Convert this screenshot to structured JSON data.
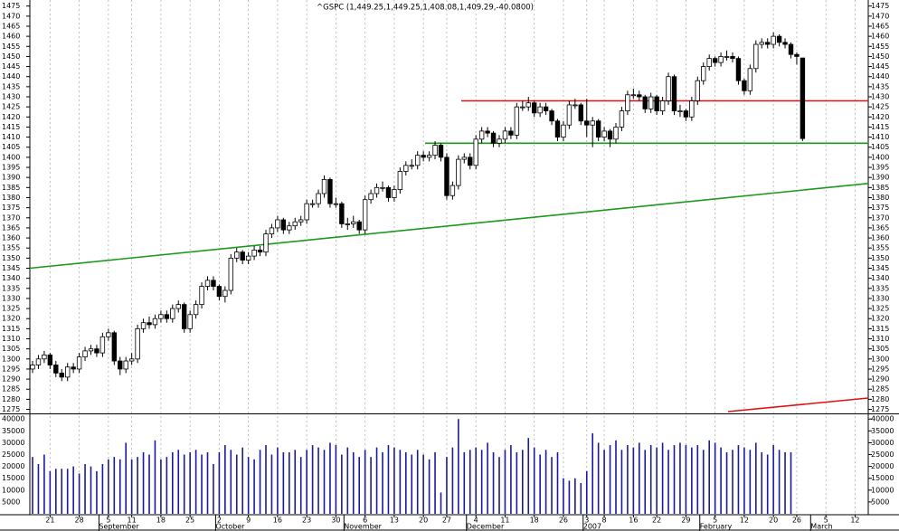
{
  "chart_data": {
    "type": "candlestick",
    "title": "^GSPC (1,449.25,1,449.25,1,408.08,1,409.29,-40.0800)",
    "categories": [
      null,
      null,
      null,
      "21",
      null,
      null,
      null,
      null,
      "28",
      null,
      null,
      null,
      null,
      "5",
      null,
      null,
      null,
      "11",
      null,
      null,
      null,
      null,
      "18",
      null,
      null,
      null,
      null,
      "25",
      null,
      null,
      null,
      null,
      "2",
      null,
      null,
      null,
      null,
      "9",
      null,
      null,
      null,
      null,
      "16",
      null,
      null,
      null,
      null,
      "23",
      null,
      null,
      null,
      null,
      "30",
      null,
      null,
      null,
      null,
      "6",
      null,
      null,
      null,
      null,
      "13",
      null,
      null,
      null,
      null,
      "20",
      null,
      null,
      null,
      "27",
      null,
      null,
      null,
      null,
      "4",
      null,
      null,
      null,
      null,
      "11",
      null,
      null,
      null,
      null,
      "18",
      null,
      null,
      null,
      null,
      "26",
      null,
      null,
      null,
      "3",
      null,
      null,
      "8",
      null,
      null,
      null,
      null,
      "16",
      null,
      null,
      null,
      "22",
      null,
      null,
      null,
      null,
      "29",
      null,
      null,
      null,
      null,
      "5",
      null,
      null,
      null,
      null,
      "12",
      null,
      null,
      null,
      null,
      "20",
      null,
      null,
      null,
      "26",
      null,
      null,
      null,
      null,
      "5",
      null,
      null,
      null,
      null,
      "12",
      null
    ],
    "months": [
      null,
      null,
      null,
      null,
      null,
      null,
      null,
      null,
      null,
      null,
      null,
      null,
      "September",
      null,
      null,
      null,
      null,
      null,
      null,
      null,
      null,
      null,
      null,
      null,
      null,
      null,
      null,
      null,
      null,
      null,
      null,
      null,
      "October",
      null,
      null,
      null,
      null,
      null,
      null,
      null,
      null,
      null,
      null,
      null,
      null,
      null,
      null,
      null,
      null,
      null,
      null,
      null,
      null,
      null,
      "November",
      null,
      null,
      null,
      null,
      null,
      null,
      null,
      null,
      null,
      null,
      null,
      null,
      null,
      null,
      null,
      null,
      null,
      null,
      null,
      null,
      "December",
      null,
      null,
      null,
      null,
      null,
      null,
      null,
      null,
      null,
      null,
      null,
      null,
      null,
      null,
      null,
      null,
      null,
      null,
      null,
      "2007",
      null,
      null,
      null,
      null,
      null,
      null,
      null,
      null,
      null,
      null,
      null,
      null,
      null,
      null,
      null,
      null,
      null,
      null,
      null,
      "February",
      null,
      null,
      null,
      null,
      null,
      null,
      null,
      null,
      null,
      null,
      null,
      null,
      null,
      null,
      null,
      null,
      null,
      null,
      "March",
      null,
      null,
      null,
      null,
      null,
      null,
      null,
      null
    ],
    "open": [
      1295,
      1297,
      1300,
      1302,
      1297,
      1293,
      1291,
      1296,
      1295,
      1301,
      1304,
      1305,
      1303,
      1311,
      1313,
      1299,
      1295,
      1299,
      1300,
      1315,
      1318,
      1317,
      1320,
      1322,
      1320,
      1325,
      1327,
      1315,
      1322,
      1327,
      1336,
      1339,
      1336,
      1331,
      1334,
      1350,
      1353,
      1349,
      1351,
      1354,
      1353,
      1362,
      1365,
      1369,
      1364,
      1366,
      1368,
      1369,
      1377,
      1377,
      1382,
      1389,
      1377,
      1377,
      1367,
      1367,
      1368,
      1364,
      1379,
      1382,
      1385,
      1385,
      1380,
      1384,
      1393,
      1396,
      1396,
      1401,
      1400,
      1401,
      1406,
      1400,
      1381,
      1386,
      1399,
      1400,
      1396,
      1409,
      1413,
      1412,
      1407,
      1409,
      1413,
      1411,
      1425,
      1425,
      1427,
      1422,
      1425,
      1423,
      1418,
      1410,
      1416,
      1426,
      1426,
      1418,
      1416,
      1418,
      1410,
      1413,
      1409,
      1415,
      1423,
      1431,
      1431,
      1430,
      1424,
      1430,
      1423,
      1428,
      1440,
      1423,
      1423,
      1420,
      1428,
      1438,
      1445,
      1449,
      1447,
      1450,
      1450,
      1449,
      1438,
      1433,
      1444,
      1456,
      1457,
      1456,
      1460,
      1457,
      1456,
      1451,
      1449.25,
      null,
      null,
      null,
      null,
      null,
      null,
      null,
      null,
      null,
      null
    ],
    "high": [
      1299,
      1302,
      1304,
      1303,
      1299,
      1295,
      1298,
      1298,
      1303,
      1306,
      1307,
      1307,
      1313,
      1315,
      1314,
      1301,
      1301,
      1303,
      1317,
      1320,
      1321,
      1322,
      1324,
      1324,
      1327,
      1329,
      1328,
      1324,
      1329,
      1338,
      1341,
      1341,
      1337,
      1336,
      1352,
      1355,
      1354,
      1353,
      1356,
      1356,
      1364,
      1367,
      1371,
      1370,
      1368,
      1370,
      1371,
      1379,
      1379,
      1384,
      1391,
      1390,
      1380,
      1378,
      1370,
      1371,
      1369,
      1381,
      1384,
      1387,
      1388,
      1386,
      1386,
      1395,
      1398,
      1399,
      1403,
      1403,
      1403,
      1408,
      1407,
      1402,
      1388,
      1401,
      1402,
      1402,
      1411,
      1415,
      1415,
      1413,
      1411,
      1415,
      1415,
      1427,
      1428,
      1430,
      1428,
      1427,
      1427,
      1424,
      1419,
      1418,
      1428,
      1429,
      1427,
      1429,
      1420,
      1419,
      1415,
      1414,
      1417,
      1425,
      1433,
      1434,
      1433,
      1431,
      1432,
      1431,
      1430,
      1442,
      1441,
      1426,
      1424,
      1430,
      1440,
      1447,
      1451,
      1450,
      1452,
      1453,
      1452,
      1450,
      1439,
      1446,
      1458,
      1459,
      1459,
      1462,
      1461,
      1459,
      1457,
      1452,
      1449.25,
      null,
      null,
      null,
      null,
      null,
      null,
      null,
      null,
      null,
      null
    ],
    "low": [
      1293,
      1295,
      1298,
      1295,
      1291,
      1289,
      1289,
      1293,
      1293,
      1299,
      1302,
      1301,
      1301,
      1309,
      1297,
      1292,
      1293,
      1297,
      1298,
      1313,
      1315,
      1315,
      1318,
      1318,
      1318,
      1323,
      1313,
      1313,
      1320,
      1325,
      1334,
      1334,
      1329,
      1328,
      1332,
      1348,
      1347,
      1347,
      1349,
      1351,
      1351,
      1360,
      1363,
      1362,
      1362,
      1364,
      1366,
      1367,
      1375,
      1375,
      1380,
      1375,
      1375,
      1365,
      1364,
      1365,
      1362,
      1362,
      1377,
      1380,
      1383,
      1378,
      1378,
      1382,
      1391,
      1394,
      1394,
      1398,
      1398,
      1399,
      1398,
      1379,
      1379,
      1384,
      1397,
      1394,
      1394,
      1407,
      1410,
      1405,
      1405,
      1407,
      1409,
      1409,
      1423,
      1423,
      1420,
      1420,
      1421,
      1416,
      1408,
      1408,
      1414,
      1424,
      1416,
      1410,
      1405,
      1408,
      1408,
      1405,
      1407,
      1413,
      1421,
      1429,
      1428,
      1422,
      1422,
      1421,
      1421,
      1426,
      1421,
      1420,
      1418,
      1418,
      1426,
      1436,
      1443,
      1445,
      1445,
      1448,
      1447,
      1436,
      1431,
      1431,
      1442,
      1454,
      1454,
      1454,
      1455,
      1454,
      1449,
      1446,
      1408.08,
      null,
      null,
      null,
      null,
      null,
      null,
      null,
      null,
      null,
      null
    ],
    "close": [
      1297,
      1300,
      1302,
      1297,
      1293,
      1291,
      1296,
      1295,
      1301,
      1304,
      1305,
      1303,
      1311,
      1313,
      1299,
      1295,
      1299,
      1300,
      1315,
      1318,
      1317,
      1320,
      1322,
      1320,
      1325,
      1327,
      1315,
      1322,
      1327,
      1336,
      1339,
      1336,
      1331,
      1334,
      1350,
      1353,
      1349,
      1351,
      1354,
      1353,
      1362,
      1365,
      1369,
      1364,
      1366,
      1368,
      1369,
      1377,
      1377,
      1382,
      1389,
      1377,
      1377,
      1367,
      1367,
      1368,
      1364,
      1379,
      1382,
      1385,
      1385,
      1380,
      1384,
      1393,
      1396,
      1396,
      1401,
      1400,
      1401,
      1406,
      1400,
      1381,
      1386,
      1399,
      1400,
      1396,
      1409,
      1413,
      1412,
      1407,
      1409,
      1413,
      1411,
      1425,
      1425,
      1427,
      1422,
      1425,
      1423,
      1418,
      1410,
      1416,
      1426,
      1426,
      1418,
      1416,
      1418,
      1410,
      1413,
      1409,
      1415,
      1423,
      1431,
      1431,
      1430,
      1424,
      1430,
      1423,
      1428,
      1440,
      1423,
      1423,
      1420,
      1428,
      1438,
      1445,
      1449,
      1447,
      1450,
      1450,
      1449,
      1438,
      1433,
      1444,
      1456,
      1457,
      1456,
      1460,
      1457,
      1456,
      1451,
      1450,
      1409.29,
      null,
      null,
      null,
      null,
      null,
      null,
      null,
      null,
      null,
      null
    ],
    "volume": [
      24000,
      21000,
      25000,
      18000,
      19000,
      19000,
      19000,
      20000,
      17000,
      21000,
      20000,
      18000,
      21000,
      23000,
      24000,
      23000,
      30000,
      23000,
      24000,
      26000,
      25000,
      31000,
      23000,
      24000,
      26000,
      27000,
      25000,
      26000,
      27000,
      25000,
      26000,
      21000,
      26000,
      29000,
      27000,
      25000,
      28000,
      24000,
      23000,
      27000,
      29000,
      25000,
      28000,
      26000,
      26000,
      27000,
      24000,
      27000,
      29000,
      28000,
      27000,
      30000,
      29000,
      25000,
      28000,
      26000,
      24000,
      27000,
      24000,
      28000,
      26000,
      29000,
      28000,
      27000,
      26000,
      25000,
      27000,
      25000,
      23000,
      26000,
      9000,
      24000,
      28000,
      40000,
      26000,
      27000,
      28000,
      27000,
      30000,
      26000,
      24000,
      27000,
      29000,
      26000,
      27000,
      32000,
      28000,
      25000,
      27000,
      24000,
      26000,
      15000,
      14000,
      15000,
      13000,
      18000,
      34000,
      30000,
      27000,
      29000,
      31000,
      27000,
      29000,
      28000,
      30000,
      27000,
      29000,
      28000,
      30000,
      27000,
      29000,
      30000,
      29000,
      28000,
      29000,
      27000,
      31000,
      30000,
      28000,
      26000,
      27000,
      29000,
      28000,
      27000,
      30000,
      26000,
      25000,
      29000,
      27000,
      26000,
      26000,
      null,
      null,
      null,
      null,
      null,
      null,
      null,
      null,
      null,
      null,
      null,
      null
    ],
    "ylim": [
      1273,
      1478
    ],
    "yticks": [
      1275,
      1280,
      1285,
      1290,
      1295,
      1300,
      1305,
      1310,
      1315,
      1320,
      1325,
      1330,
      1335,
      1340,
      1345,
      1350,
      1355,
      1360,
      1365,
      1370,
      1375,
      1380,
      1385,
      1390,
      1395,
      1400,
      1405,
      1410,
      1415,
      1420,
      1425,
      1430,
      1435,
      1440,
      1445,
      1450,
      1455,
      1460,
      1465,
      1470,
      1475
    ],
    "volume_ylim": [
      0,
      42000
    ],
    "volume_yticks": [
      5000,
      10000,
      15000,
      20000,
      25000,
      30000,
      35000,
      40000
    ],
    "up_color": "#ffffff",
    "down_color": "#000000",
    "volume_color": "#1a1aa0",
    "grid": true
  }
}
